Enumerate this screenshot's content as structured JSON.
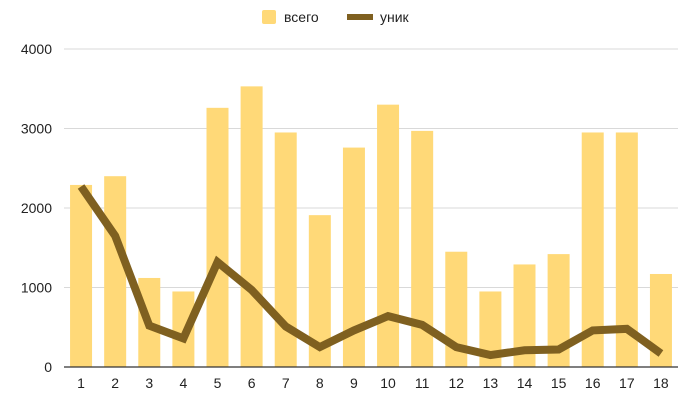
{
  "chart_data": {
    "type": "bar",
    "title": "",
    "xlabel": "",
    "ylabel": "",
    "categories": [
      "1",
      "2",
      "3",
      "4",
      "5",
      "6",
      "7",
      "8",
      "9",
      "10",
      "11",
      "12",
      "13",
      "14",
      "15",
      "16",
      "17",
      "18"
    ],
    "ylim": [
      0,
      4000
    ],
    "yticks": [
      0,
      1000,
      2000,
      3000,
      4000
    ],
    "grid": true,
    "legend_position": "top-center",
    "series": [
      {
        "name": "всего",
        "type": "bar",
        "color": "#ffd978",
        "values": [
          2290,
          2400,
          1120,
          950,
          3260,
          3530,
          2950,
          1910,
          2760,
          3300,
          2970,
          1450,
          950,
          1290,
          1420,
          2950,
          2950,
          1170
        ]
      },
      {
        "name": "уник",
        "type": "line",
        "color": "#7f6020",
        "values": [
          2270,
          1650,
          520,
          360,
          1320,
          970,
          510,
          250,
          460,
          640,
          530,
          250,
          150,
          210,
          220,
          460,
          480,
          170
        ]
      }
    ]
  }
}
